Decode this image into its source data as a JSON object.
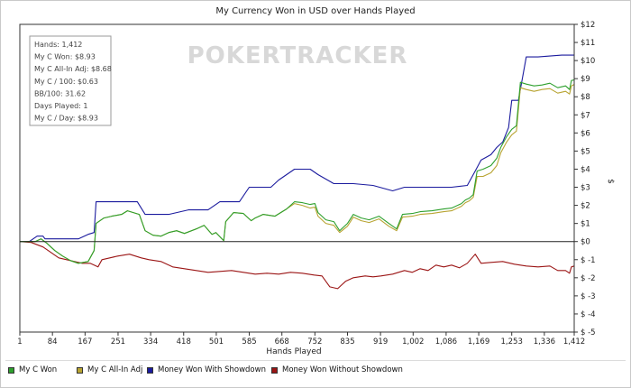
{
  "chart_data": {
    "type": "line",
    "title": "My Currency Won in USD over Hands Played",
    "xlabel": "Hands Played",
    "ylabel": "$",
    "xlim": [
      1,
      1412
    ],
    "ylim": [
      -5,
      12
    ],
    "x_ticks": [
      1,
      84,
      167,
      251,
      334,
      418,
      501,
      585,
      668,
      752,
      835,
      919,
      1002,
      1086,
      1169,
      1253,
      1336,
      1412
    ],
    "x_tick_labels": [
      "1",
      "84",
      "167",
      "251",
      "334",
      "418",
      "501",
      "585",
      "668",
      "752",
      "835",
      "919",
      "1,002",
      "1,086",
      "1,169",
      "1,253",
      "1,336",
      "1,412"
    ],
    "y_ticks": [
      12,
      11,
      10,
      9,
      8,
      7,
      6,
      5,
      4,
      3,
      2,
      1,
      0,
      -1,
      -2,
      -3,
      -4,
      -5
    ],
    "y_tick_labels": [
      "$12",
      "$11",
      "$10",
      "$9",
      "$8",
      "$7",
      "$6",
      "$5",
      "$4",
      "$3",
      "$2",
      "$1",
      "$0",
      "$ -1",
      "$ -2",
      "$ -3",
      "$ -4",
      "$ -5"
    ],
    "watermark": "POKERTRACKER",
    "grid": false,
    "legend_position": "bottom",
    "series": [
      {
        "name": "My C Won",
        "color": "#2ea02e",
        "points": [
          [
            1,
            0
          ],
          [
            40,
            0
          ],
          [
            55,
            0.15
          ],
          [
            70,
            -0.1
          ],
          [
            90,
            -0.5
          ],
          [
            110,
            -0.8
          ],
          [
            130,
            -1.05
          ],
          [
            150,
            -1.2
          ],
          [
            175,
            -1.1
          ],
          [
            190,
            -0.5
          ],
          [
            195,
            1.0
          ],
          [
            215,
            1.3
          ],
          [
            235,
            1.4
          ],
          [
            260,
            1.5
          ],
          [
            275,
            1.7
          ],
          [
            305,
            1.5
          ],
          [
            320,
            0.6
          ],
          [
            340,
            0.35
          ],
          [
            360,
            0.3
          ],
          [
            380,
            0.5
          ],
          [
            400,
            0.6
          ],
          [
            420,
            0.45
          ],
          [
            450,
            0.7
          ],
          [
            470,
            0.9
          ],
          [
            490,
            0.4
          ],
          [
            500,
            0.5
          ],
          [
            520,
            0.05
          ],
          [
            525,
            1.1
          ],
          [
            545,
            1.6
          ],
          [
            570,
            1.55
          ],
          [
            590,
            1.15
          ],
          [
            600,
            1.3
          ],
          [
            620,
            1.5
          ],
          [
            650,
            1.4
          ],
          [
            680,
            1.8
          ],
          [
            700,
            2.2
          ],
          [
            720,
            2.15
          ],
          [
            740,
            2.05
          ],
          [
            752,
            2.1
          ],
          [
            760,
            1.6
          ],
          [
            780,
            1.2
          ],
          [
            800,
            1.1
          ],
          [
            815,
            0.6
          ],
          [
            835,
            1.0
          ],
          [
            850,
            1.5
          ],
          [
            870,
            1.3
          ],
          [
            890,
            1.2
          ],
          [
            915,
            1.4
          ],
          [
            940,
            1.0
          ],
          [
            960,
            0.7
          ],
          [
            975,
            1.5
          ],
          [
            1000,
            1.55
          ],
          [
            1020,
            1.65
          ],
          [
            1050,
            1.7
          ],
          [
            1080,
            1.8
          ],
          [
            1100,
            1.85
          ],
          [
            1125,
            2.1
          ],
          [
            1135,
            2.3
          ],
          [
            1145,
            2.4
          ],
          [
            1155,
            2.6
          ],
          [
            1165,
            3.9
          ],
          [
            1180,
            4.0
          ],
          [
            1200,
            4.2
          ],
          [
            1215,
            4.6
          ],
          [
            1225,
            5.2
          ],
          [
            1240,
            5.8
          ],
          [
            1253,
            6.2
          ],
          [
            1265,
            6.4
          ],
          [
            1275,
            8.8
          ],
          [
            1290,
            8.7
          ],
          [
            1310,
            8.6
          ],
          [
            1330,
            8.65
          ],
          [
            1350,
            8.75
          ],
          [
            1370,
            8.5
          ],
          [
            1390,
            8.6
          ],
          [
            1400,
            8.4
          ],
          [
            1405,
            8.9
          ],
          [
            1412,
            8.93
          ]
        ]
      },
      {
        "name": "My C All-In Adj",
        "color": "#b8a432",
        "points": [
          [
            1,
            0
          ],
          [
            40,
            0
          ],
          [
            55,
            0.15
          ],
          [
            70,
            -0.1
          ],
          [
            90,
            -0.5
          ],
          [
            110,
            -0.8
          ],
          [
            130,
            -1.05
          ],
          [
            150,
            -1.2
          ],
          [
            175,
            -1.1
          ],
          [
            190,
            -0.5
          ],
          [
            195,
            1.0
          ],
          [
            215,
            1.3
          ],
          [
            235,
            1.4
          ],
          [
            260,
            1.5
          ],
          [
            275,
            1.7
          ],
          [
            305,
            1.5
          ],
          [
            320,
            0.6
          ],
          [
            340,
            0.35
          ],
          [
            360,
            0.3
          ],
          [
            380,
            0.5
          ],
          [
            400,
            0.6
          ],
          [
            420,
            0.45
          ],
          [
            450,
            0.7
          ],
          [
            470,
            0.9
          ],
          [
            490,
            0.4
          ],
          [
            500,
            0.5
          ],
          [
            520,
            0.05
          ],
          [
            525,
            1.1
          ],
          [
            545,
            1.6
          ],
          [
            570,
            1.55
          ],
          [
            590,
            1.15
          ],
          [
            600,
            1.3
          ],
          [
            620,
            1.5
          ],
          [
            650,
            1.4
          ],
          [
            680,
            1.8
          ],
          [
            700,
            2.1
          ],
          [
            720,
            2.0
          ],
          [
            740,
            1.85
          ],
          [
            752,
            1.9
          ],
          [
            760,
            1.4
          ],
          [
            780,
            1.0
          ],
          [
            800,
            0.9
          ],
          [
            815,
            0.5
          ],
          [
            835,
            0.85
          ],
          [
            850,
            1.35
          ],
          [
            870,
            1.15
          ],
          [
            890,
            1.05
          ],
          [
            915,
            1.25
          ],
          [
            940,
            0.85
          ],
          [
            960,
            0.6
          ],
          [
            975,
            1.35
          ],
          [
            1000,
            1.4
          ],
          [
            1020,
            1.5
          ],
          [
            1050,
            1.55
          ],
          [
            1080,
            1.65
          ],
          [
            1100,
            1.7
          ],
          [
            1125,
            1.95
          ],
          [
            1135,
            2.15
          ],
          [
            1145,
            2.25
          ],
          [
            1155,
            2.45
          ],
          [
            1165,
            3.6
          ],
          [
            1180,
            3.6
          ],
          [
            1200,
            3.8
          ],
          [
            1215,
            4.2
          ],
          [
            1225,
            4.9
          ],
          [
            1240,
            5.5
          ],
          [
            1253,
            5.9
          ],
          [
            1265,
            6.1
          ],
          [
            1275,
            8.5
          ],
          [
            1290,
            8.4
          ],
          [
            1310,
            8.3
          ],
          [
            1330,
            8.4
          ],
          [
            1350,
            8.45
          ],
          [
            1370,
            8.2
          ],
          [
            1390,
            8.3
          ],
          [
            1400,
            8.15
          ],
          [
            1405,
            8.6
          ],
          [
            1412,
            8.68
          ]
        ]
      },
      {
        "name": "Money Won With Showdown",
        "color": "#1b1b9e",
        "points": [
          [
            1,
            0
          ],
          [
            25,
            0
          ],
          [
            45,
            0.3
          ],
          [
            60,
            0.3
          ],
          [
            65,
            0.15
          ],
          [
            80,
            0.15
          ],
          [
            100,
            0.15
          ],
          [
            120,
            0.15
          ],
          [
            150,
            0.15
          ],
          [
            175,
            0.4
          ],
          [
            190,
            0.5
          ],
          [
            195,
            2.2
          ],
          [
            250,
            2.2
          ],
          [
            300,
            2.2
          ],
          [
            320,
            1.5
          ],
          [
            340,
            1.5
          ],
          [
            360,
            1.5
          ],
          [
            380,
            1.5
          ],
          [
            430,
            1.75
          ],
          [
            480,
            1.75
          ],
          [
            510,
            2.2
          ],
          [
            560,
            2.2
          ],
          [
            585,
            3.0
          ],
          [
            640,
            3.0
          ],
          [
            660,
            3.4
          ],
          [
            700,
            4.0
          ],
          [
            740,
            4.0
          ],
          [
            760,
            3.7
          ],
          [
            800,
            3.2
          ],
          [
            850,
            3.2
          ],
          [
            900,
            3.1
          ],
          [
            950,
            2.8
          ],
          [
            980,
            3.0
          ],
          [
            1010,
            3.0
          ],
          [
            1060,
            3.0
          ],
          [
            1100,
            3.0
          ],
          [
            1140,
            3.1
          ],
          [
            1160,
            3.9
          ],
          [
            1175,
            4.5
          ],
          [
            1200,
            4.8
          ],
          [
            1215,
            5.2
          ],
          [
            1230,
            5.5
          ],
          [
            1245,
            6.3
          ],
          [
            1253,
            7.8
          ],
          [
            1270,
            7.8
          ],
          [
            1290,
            10.2
          ],
          [
            1320,
            10.2
          ],
          [
            1350,
            10.25
          ],
          [
            1380,
            10.3
          ],
          [
            1412,
            10.3
          ]
        ]
      },
      {
        "name": "Money Won Without Showdown",
        "color": "#9b1515",
        "points": [
          [
            1,
            0
          ],
          [
            30,
            -0.05
          ],
          [
            60,
            -0.3
          ],
          [
            80,
            -0.6
          ],
          [
            100,
            -0.9
          ],
          [
            120,
            -1.0
          ],
          [
            140,
            -1.1
          ],
          [
            160,
            -1.2
          ],
          [
            180,
            -1.2
          ],
          [
            200,
            -1.4
          ],
          [
            210,
            -1.0
          ],
          [
            230,
            -0.9
          ],
          [
            250,
            -0.8
          ],
          [
            280,
            -0.7
          ],
          [
            310,
            -0.9
          ],
          [
            330,
            -1.0
          ],
          [
            360,
            -1.1
          ],
          [
            390,
            -1.4
          ],
          [
            420,
            -1.5
          ],
          [
            450,
            -1.6
          ],
          [
            480,
            -1.7
          ],
          [
            510,
            -1.65
          ],
          [
            540,
            -1.6
          ],
          [
            570,
            -1.7
          ],
          [
            600,
            -1.8
          ],
          [
            630,
            -1.75
          ],
          [
            660,
            -1.8
          ],
          [
            690,
            -1.7
          ],
          [
            720,
            -1.75
          ],
          [
            750,
            -1.85
          ],
          [
            770,
            -1.9
          ],
          [
            790,
            -2.5
          ],
          [
            810,
            -2.6
          ],
          [
            830,
            -2.2
          ],
          [
            850,
            -2.0
          ],
          [
            880,
            -1.9
          ],
          [
            900,
            -1.95
          ],
          [
            920,
            -1.9
          ],
          [
            950,
            -1.8
          ],
          [
            980,
            -1.6
          ],
          [
            1000,
            -1.7
          ],
          [
            1020,
            -1.5
          ],
          [
            1040,
            -1.6
          ],
          [
            1060,
            -1.3
          ],
          [
            1080,
            -1.4
          ],
          [
            1100,
            -1.3
          ],
          [
            1120,
            -1.45
          ],
          [
            1140,
            -1.2
          ],
          [
            1160,
            -0.7
          ],
          [
            1175,
            -1.2
          ],
          [
            1200,
            -1.15
          ],
          [
            1230,
            -1.1
          ],
          [
            1260,
            -1.25
          ],
          [
            1290,
            -1.35
          ],
          [
            1320,
            -1.4
          ],
          [
            1350,
            -1.35
          ],
          [
            1370,
            -1.6
          ],
          [
            1390,
            -1.6
          ],
          [
            1400,
            -1.75
          ],
          [
            1405,
            -1.4
          ],
          [
            1412,
            -1.35
          ]
        ]
      }
    ]
  },
  "stats_box": {
    "lines": [
      "Hands: 1,412",
      "My C Won: $8.93",
      "My C All-In Adj: $8.68",
      "My C / 100: $0.63",
      "BB/100: 31.62",
      "Days Played: 1",
      "My C / Day: $8.93"
    ]
  }
}
